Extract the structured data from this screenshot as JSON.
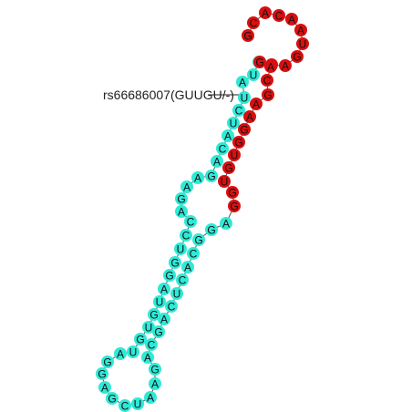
{
  "colors": {
    "background": "#ffffff",
    "unmodified": "#2ee9d6",
    "variant_region": "#d90f0f",
    "backbone": "#555555",
    "text": "#111111"
  },
  "variant_label": "rs66686007(GUUGU/-)",
  "nucleotides": [
    {
      "base": "G",
      "group": "variant_region"
    },
    {
      "base": "C",
      "group": "variant_region"
    },
    {
      "base": "A",
      "group": "variant_region"
    },
    {
      "base": "C",
      "group": "variant_region"
    },
    {
      "base": "A",
      "group": "variant_region"
    },
    {
      "base": "A",
      "group": "variant_region"
    },
    {
      "base": "U",
      "group": "variant_region"
    },
    {
      "base": "G",
      "group": "variant_region"
    },
    {
      "base": "A",
      "group": "variant_region"
    },
    {
      "base": "C",
      "group": "variant_region"
    },
    {
      "base": "G",
      "group": "unmodified"
    },
    {
      "base": "U",
      "group": "unmodified"
    },
    {
      "base": "A",
      "group": "unmodified"
    },
    {
      "base": "U",
      "group": "unmodified"
    },
    {
      "base": "C",
      "group": "unmodified"
    },
    {
      "base": "U",
      "group": "unmodified"
    },
    {
      "base": "A",
      "group": "unmodified"
    },
    {
      "base": "C",
      "group": "unmodified"
    },
    {
      "base": "A",
      "group": "unmodified"
    },
    {
      "base": "G",
      "group": "unmodified"
    },
    {
      "base": "A",
      "group": "unmodified"
    },
    {
      "base": "A",
      "group": "unmodified"
    },
    {
      "base": "G",
      "group": "unmodified"
    },
    {
      "base": "A",
      "group": "unmodified"
    },
    {
      "base": "C",
      "group": "unmodified"
    },
    {
      "base": "C",
      "group": "unmodified"
    },
    {
      "base": "U",
      "group": "unmodified"
    },
    {
      "base": "G",
      "group": "unmodified"
    },
    {
      "base": "G",
      "group": "unmodified"
    },
    {
      "base": "A",
      "group": "unmodified"
    },
    {
      "base": "U",
      "group": "unmodified"
    },
    {
      "base": "G",
      "group": "unmodified"
    },
    {
      "base": "U",
      "group": "unmodified"
    },
    {
      "base": "G",
      "group": "unmodified"
    },
    {
      "base": "U",
      "group": "unmodified"
    },
    {
      "base": "A",
      "group": "unmodified"
    },
    {
      "base": "G",
      "group": "unmodified"
    },
    {
      "base": "G",
      "group": "unmodified"
    },
    {
      "base": "A",
      "group": "unmodified"
    },
    {
      "base": "G",
      "group": "unmodified"
    },
    {
      "base": "C",
      "group": "unmodified"
    },
    {
      "base": "U",
      "group": "unmodified"
    },
    {
      "base": "A",
      "group": "unmodified"
    },
    {
      "base": "A",
      "group": "unmodified"
    },
    {
      "base": "G",
      "group": "unmodified"
    },
    {
      "base": "A",
      "group": "unmodified"
    },
    {
      "base": "C",
      "group": "unmodified"
    },
    {
      "base": "G",
      "group": "unmodified"
    },
    {
      "base": "A",
      "group": "unmodified"
    },
    {
      "base": "C",
      "group": "unmodified"
    },
    {
      "base": "U",
      "group": "unmodified"
    },
    {
      "base": "C",
      "group": "unmodified"
    },
    {
      "base": "A",
      "group": "unmodified"
    },
    {
      "base": "C",
      "group": "unmodified"
    },
    {
      "base": "G",
      "group": "unmodified"
    },
    {
      "base": "G",
      "group": "unmodified"
    },
    {
      "base": "A",
      "group": "unmodified"
    },
    {
      "base": "G",
      "group": "variant_region"
    },
    {
      "base": "G",
      "group": "variant_region"
    },
    {
      "base": "U",
      "group": "variant_region"
    },
    {
      "base": "G",
      "group": "variant_region"
    },
    {
      "base": "U",
      "group": "variant_region"
    },
    {
      "base": "G",
      "group": "variant_region"
    },
    {
      "base": "G",
      "group": "variant_region"
    },
    {
      "base": "A",
      "group": "variant_region"
    },
    {
      "base": "A",
      "group": "variant_region"
    },
    {
      "base": "G",
      "group": "variant_region"
    },
    {
      "base": "C",
      "group": "variant_region"
    },
    {
      "base": "A",
      "group": "variant_region"
    },
    {
      "base": "G",
      "group": "variant_region"
    }
  ]
}
